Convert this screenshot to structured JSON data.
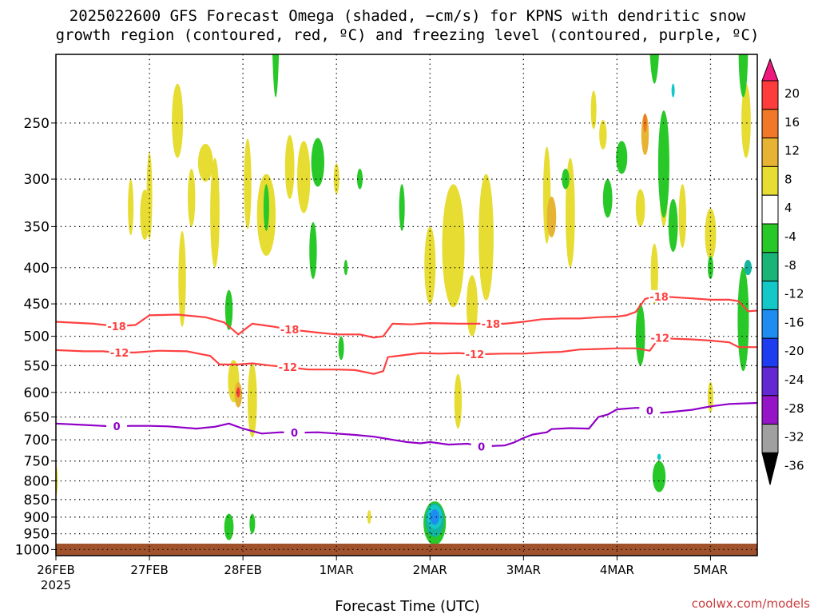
{
  "title_line1": "2025022600 GFS Forecast Omega (shaded, −cm/s) for KPNS with dendritic snow",
  "title_line2": "growth region (contoured, red, ºC) and freezing level (contoured, purple, ºC)",
  "xlabel": "Forecast Time (UTC)",
  "credit": "coolwx.com/models",
  "colors": {
    "dgz": "#ff4040",
    "freezing": "#9000c8",
    "ground": "#a0522d",
    "grid": "#000000"
  },
  "chart_data": {
    "type": "heatmap",
    "x_tick_labels": [
      "26FEB",
      "27FEB",
      "28FEB",
      "1MAR",
      "2MAR",
      "3MAR",
      "4MAR",
      "5MAR"
    ],
    "x_tick_sublabel": "2025",
    "x_ticks_days": [
      0,
      1,
      2,
      3,
      4,
      5,
      6,
      7
    ],
    "xlim_days": [
      0,
      7.5
    ],
    "y_tick_labels": [
      "250",
      "300",
      "350",
      "400",
      "450",
      "500",
      "550",
      "600",
      "650",
      "700",
      "750",
      "800",
      "850",
      "900",
      "950",
      "1000"
    ],
    "y_ticks_hpa": [
      250,
      300,
      350,
      400,
      450,
      500,
      550,
      600,
      650,
      700,
      750,
      800,
      850,
      900,
      950,
      1000
    ],
    "ylim_hpa": [
      200,
      1020
    ],
    "ylog": true,
    "grid": true,
    "colorbar": {
      "labels": [
        "20",
        "16",
        "12",
        "8",
        "4",
        "-4",
        "-8",
        "-12",
        "-16",
        "-20",
        "-24",
        "-28",
        "-32",
        "-36"
      ],
      "colors": [
        "#f0187c",
        "#ff3c3c",
        "#f07828",
        "#e6b432",
        "#e6dc32",
        "#ffffff",
        "#28c828",
        "#18b478",
        "#14c8c8",
        "#1e8cf0",
        "#1e3cf0",
        "#6428d2",
        "#9614c8",
        "#a0a0a0",
        "#000000"
      ]
    },
    "contours": [
      {
        "name": "-18",
        "color": "#ff4040",
        "labels": [
          "-18",
          "-18",
          "-18",
          "-18"
        ],
        "label_days": [
          0.65,
          2.5,
          4.65,
          6.45
        ],
        "points": [
          [
            0,
            477
          ],
          [
            0.4,
            480
          ],
          [
            0.65,
            484
          ],
          [
            0.85,
            482
          ],
          [
            1.0,
            467
          ],
          [
            1.3,
            466
          ],
          [
            1.6,
            470
          ],
          [
            1.8,
            478
          ],
          [
            1.95,
            497
          ],
          [
            2.1,
            480
          ],
          [
            2.3,
            484
          ],
          [
            2.5,
            489
          ],
          [
            2.8,
            494
          ],
          [
            3.0,
            497
          ],
          [
            3.25,
            497
          ],
          [
            3.4,
            502
          ],
          [
            3.5,
            500
          ],
          [
            3.6,
            480
          ],
          [
            3.8,
            481
          ],
          [
            4.0,
            479
          ],
          [
            4.3,
            480
          ],
          [
            4.6,
            480
          ],
          [
            4.8,
            480
          ],
          [
            5.0,
            477
          ],
          [
            5.2,
            473
          ],
          [
            5.4,
            472
          ],
          [
            5.6,
            472
          ],
          [
            5.8,
            470
          ],
          [
            6.0,
            469
          ],
          [
            6.1,
            467
          ],
          [
            6.2,
            462
          ],
          [
            6.3,
            443
          ],
          [
            6.4,
            439
          ],
          [
            6.55,
            440
          ],
          [
            6.8,
            442
          ],
          [
            7.0,
            444
          ],
          [
            7.2,
            444
          ],
          [
            7.3,
            446
          ],
          [
            7.4,
            461
          ],
          [
            7.5,
            460
          ]
        ]
      },
      {
        "name": "-12",
        "color": "#ff4040",
        "labels": [
          "-12",
          "-12",
          "-12",
          "-12"
        ],
        "label_days": [
          0.68,
          2.48,
          4.48,
          6.46
        ],
        "points": [
          [
            0,
            523
          ],
          [
            0.3,
            525
          ],
          [
            0.5,
            525
          ],
          [
            0.65,
            527
          ],
          [
            0.85,
            527
          ],
          [
            1.1,
            524
          ],
          [
            1.4,
            525
          ],
          [
            1.65,
            533
          ],
          [
            1.75,
            548
          ],
          [
            1.95,
            548
          ],
          [
            2.1,
            546
          ],
          [
            2.3,
            550
          ],
          [
            2.5,
            553
          ],
          [
            2.7,
            557
          ],
          [
            3.0,
            557
          ],
          [
            3.2,
            558
          ],
          [
            3.4,
            565
          ],
          [
            3.5,
            560
          ],
          [
            3.55,
            535
          ],
          [
            3.7,
            532
          ],
          [
            3.9,
            528
          ],
          [
            4.1,
            529
          ],
          [
            4.3,
            528
          ],
          [
            4.5,
            530
          ],
          [
            4.8,
            529
          ],
          [
            5.0,
            529
          ],
          [
            5.2,
            527
          ],
          [
            5.4,
            526
          ],
          [
            5.6,
            522
          ],
          [
            5.8,
            521
          ],
          [
            6.0,
            520
          ],
          [
            6.2,
            520
          ],
          [
            6.35,
            524
          ],
          [
            6.45,
            502
          ],
          [
            6.6,
            504
          ],
          [
            6.8,
            505
          ],
          [
            7.0,
            507
          ],
          [
            7.2,
            510
          ],
          [
            7.3,
            518
          ],
          [
            7.5,
            518
          ]
        ]
      },
      {
        "name": "0",
        "color": "#9000c8",
        "labels": [
          "0",
          "0",
          "0",
          "0"
        ],
        "label_days": [
          0.65,
          2.55,
          4.55,
          6.35
        ],
        "points": [
          [
            0,
            664
          ],
          [
            0.3,
            667
          ],
          [
            0.6,
            670
          ],
          [
            0.8,
            669
          ],
          [
            1.0,
            669
          ],
          [
            1.2,
            670
          ],
          [
            1.5,
            675
          ],
          [
            1.7,
            671
          ],
          [
            1.85,
            664
          ],
          [
            2.0,
            675
          ],
          [
            2.2,
            686
          ],
          [
            2.4,
            683
          ],
          [
            2.6,
            684
          ],
          [
            2.8,
            683
          ],
          [
            3.0,
            686
          ],
          [
            3.2,
            689
          ],
          [
            3.4,
            693
          ],
          [
            3.6,
            700
          ],
          [
            3.75,
            705
          ],
          [
            3.9,
            708
          ],
          [
            4.0,
            705
          ],
          [
            4.2,
            711
          ],
          [
            4.4,
            709
          ],
          [
            4.55,
            715
          ],
          [
            4.8,
            713
          ],
          [
            4.9,
            706
          ],
          [
            5.0,
            696
          ],
          [
            5.1,
            688
          ],
          [
            5.25,
            683
          ],
          [
            5.3,
            676
          ],
          [
            5.5,
            674
          ],
          [
            5.7,
            675
          ],
          [
            5.8,
            650
          ],
          [
            5.9,
            645
          ],
          [
            6.0,
            634
          ],
          [
            6.2,
            631
          ],
          [
            6.3,
            631
          ],
          [
            6.4,
            642
          ],
          [
            6.55,
            640
          ],
          [
            6.8,
            635
          ],
          [
            7.0,
            628
          ],
          [
            7.2,
            623
          ],
          [
            7.5,
            621
          ]
        ]
      }
    ],
    "shaded_regions": [
      {
        "name": "yellow-4",
        "color": "#e6dc32",
        "blobs": [
          [
            1.3,
            250,
            0.06,
            60
          ],
          [
            1.6,
            285,
            0.08,
            35
          ],
          [
            2.05,
            308,
            0.04,
            90
          ],
          [
            2.25,
            340,
            0.1,
            90
          ],
          [
            2.65,
            300,
            0.07,
            70
          ],
          [
            0.95,
            338,
            0.05,
            55
          ],
          [
            1.0,
            320,
            0.03,
            90
          ],
          [
            1.7,
            340,
            0.05,
            120
          ],
          [
            2.5,
            290,
            0.05,
            60
          ],
          [
            4.0,
            400,
            0.06,
            100
          ],
          [
            4.25,
            380,
            0.12,
            150
          ],
          [
            4.6,
            370,
            0.08,
            150
          ],
          [
            5.5,
            340,
            0.05,
            120
          ],
          [
            5.25,
            320,
            0.04,
            100
          ],
          [
            5.85,
            260,
            0.04,
            25
          ],
          [
            6.25,
            330,
            0.05,
            40
          ],
          [
            6.4,
            410,
            0.04,
            80
          ],
          [
            6.7,
            340,
            0.04,
            70
          ],
          [
            7.0,
            360,
            0.06,
            60
          ],
          [
            7.38,
            250,
            0.05,
            60
          ],
          [
            6.5,
            300,
            0.05,
            100
          ],
          [
            2.1,
            620,
            0.05,
            150
          ],
          [
            1.9,
            580,
            0.06,
            80
          ],
          [
            1.35,
            420,
            0.04,
            130
          ],
          [
            4.45,
            455,
            0.06,
            90
          ],
          [
            4.3,
            620,
            0.04,
            110
          ],
          [
            5.75,
            240,
            0.03,
            30
          ],
          [
            0.8,
            330,
            0.03,
            60
          ],
          [
            1.45,
            320,
            0.04,
            60
          ],
          [
            3.0,
            300,
            0.03,
            30
          ],
          [
            7.0,
            610,
            0.03,
            60
          ],
          [
            3.35,
            900,
            0.02,
            40
          ],
          [
            0.0,
            800,
            0.02,
            80
          ]
        ]
      },
      {
        "name": "orange-8",
        "color": "#e6b432",
        "blobs": [
          [
            5.3,
            340,
            0.05,
            45
          ],
          [
            6.3,
            260,
            0.04,
            35
          ],
          [
            1.95,
            605,
            0.04,
            50
          ]
        ]
      },
      {
        "name": "orange-12",
        "color": "#f07828",
        "blobs": [
          [
            6.3,
            250,
            0.02,
            15
          ]
        ]
      },
      {
        "name": "red-16",
        "color": "#ff3c3c",
        "blobs": [
          [
            1.95,
            600,
            0.02,
            20
          ]
        ]
      },
      {
        "name": "green-m4",
        "color": "#28c828",
        "blobs": [
          [
            2.35,
            180,
            0.04,
            100
          ],
          [
            2.8,
            285,
            0.07,
            45
          ],
          [
            2.75,
            380,
            0.04,
            70
          ],
          [
            1.85,
            460,
            0.04,
            60
          ],
          [
            2.25,
            330,
            0.03,
            50
          ],
          [
            3.05,
            520,
            0.03,
            40
          ],
          [
            5.45,
            300,
            0.04,
            20
          ],
          [
            5.9,
            320,
            0.05,
            40
          ],
          [
            6.05,
            280,
            0.06,
            30
          ],
          [
            6.5,
            290,
            0.06,
            100
          ],
          [
            6.6,
            350,
            0.05,
            60
          ],
          [
            6.25,
            500,
            0.05,
            100
          ],
          [
            6.45,
            790,
            0.07,
            80
          ],
          [
            7.35,
            200,
            0.05,
            60
          ],
          [
            7.35,
            480,
            0.06,
            160
          ],
          [
            7.0,
            400,
            0.03,
            30
          ],
          [
            6.4,
            180,
            0.06,
            80
          ],
          [
            1.85,
            930,
            0.05,
            80
          ],
          [
            2.1,
            920,
            0.03,
            60
          ],
          [
            3.7,
            330,
            0.03,
            50
          ],
          [
            3.25,
            300,
            0.03,
            20
          ],
          [
            3.1,
            400,
            0.02,
            20
          ],
          [
            4.05,
            920,
            0.12,
            130
          ]
        ]
      },
      {
        "name": "teal-m8",
        "color": "#14b4a0",
        "blobs": [
          [
            4.05,
            910,
            0.1,
            100
          ],
          [
            7.4,
            400,
            0.04,
            20
          ]
        ]
      },
      {
        "name": "cyan-m12",
        "color": "#14c8c8",
        "blobs": [
          [
            4.05,
            900,
            0.08,
            70
          ],
          [
            6.45,
            740,
            0.02,
            15
          ],
          [
            6.6,
            225,
            0.015,
            10
          ]
        ]
      },
      {
        "name": "blue-m16",
        "color": "#1e8cf0",
        "blobs": [
          [
            4.05,
            900,
            0.05,
            45
          ]
        ]
      }
    ]
  }
}
